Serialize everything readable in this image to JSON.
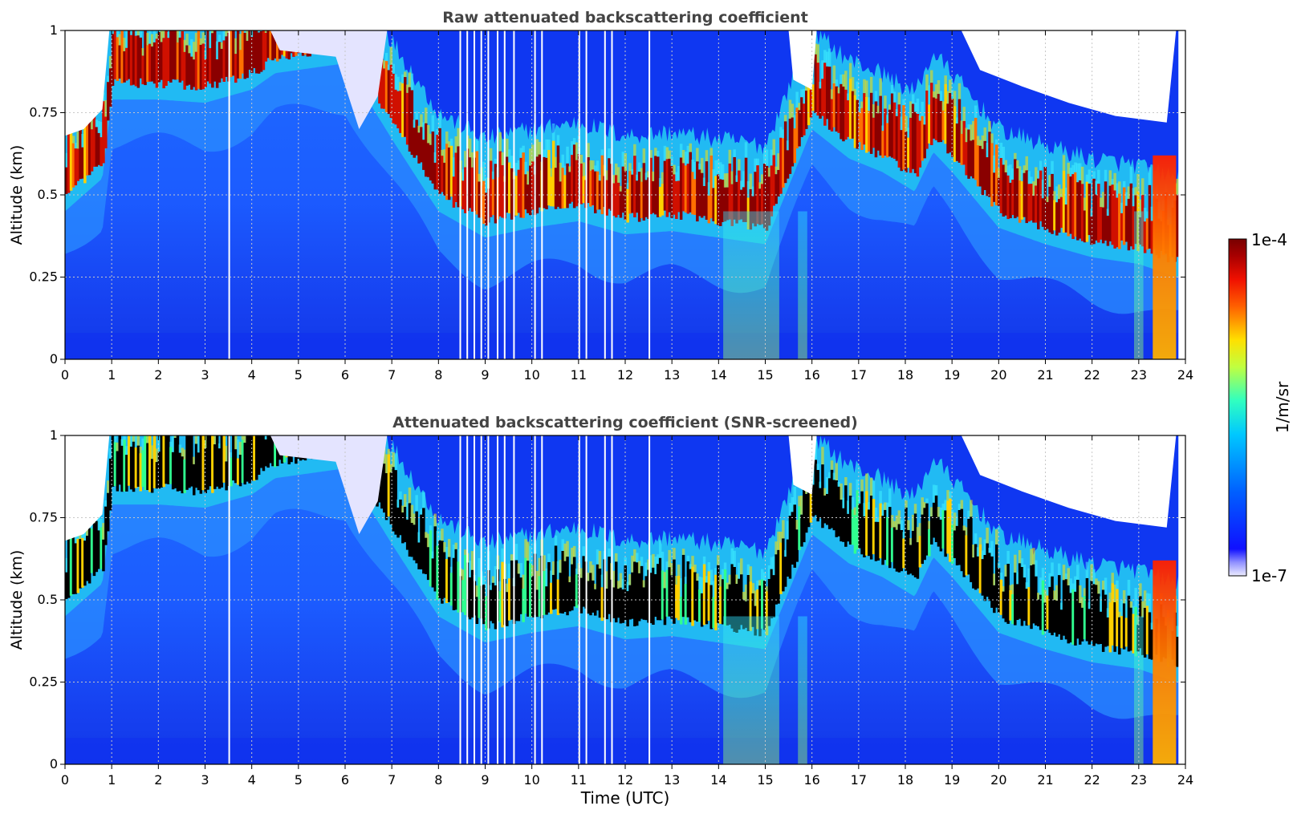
{
  "chart_data": [
    {
      "type": "heatmap",
      "title": "Raw attenuated backscattering coefficient",
      "xlabel": "",
      "ylabel": "Altitude (km)",
      "xlim": [
        0,
        24
      ],
      "ylim": [
        0,
        1
      ],
      "x_ticks": [
        "0",
        "1",
        "2",
        "3",
        "4",
        "5",
        "6",
        "7",
        "8",
        "9",
        "10",
        "11",
        "12",
        "13",
        "14",
        "15",
        "16",
        "17",
        "18",
        "19",
        "20",
        "21",
        "22",
        "23",
        "24"
      ],
      "y_ticks": [
        "0",
        "0.25",
        "0.5",
        "0.75",
        "1"
      ],
      "grid": true,
      "screened": false,
      "cloud_base_km": [
        {
          "t": 0.0,
          "z": 0.5
        },
        {
          "t": 0.8,
          "z": 0.6
        },
        {
          "t": 1.0,
          "z": 0.84
        },
        {
          "t": 2.0,
          "z": 0.84
        },
        {
          "t": 3.0,
          "z": 0.83
        },
        {
          "t": 4.0,
          "z": 0.87
        },
        {
          "t": 4.5,
          "z": 0.92
        },
        {
          "t": 6.0,
          "z": 0.95
        },
        {
          "t": 7.0,
          "z": 0.72
        },
        {
          "t": 8.0,
          "z": 0.5
        },
        {
          "t": 9.0,
          "z": 0.42
        },
        {
          "t": 10.0,
          "z": 0.45
        },
        {
          "t": 11.0,
          "z": 0.47
        },
        {
          "t": 12.0,
          "z": 0.43
        },
        {
          "t": 13.0,
          "z": 0.44
        },
        {
          "t": 14.0,
          "z": 0.42
        },
        {
          "t": 15.0,
          "z": 0.4
        },
        {
          "t": 16.0,
          "z": 0.75
        },
        {
          "t": 16.8,
          "z": 0.66
        },
        {
          "t": 17.5,
          "z": 0.62
        },
        {
          "t": 18.2,
          "z": 0.56
        },
        {
          "t": 18.6,
          "z": 0.68
        },
        {
          "t": 19.0,
          "z": 0.62
        },
        {
          "t": 20.0,
          "z": 0.45
        },
        {
          "t": 21.0,
          "z": 0.4
        },
        {
          "t": 22.0,
          "z": 0.36
        },
        {
          "t": 23.0,
          "z": 0.34
        },
        {
          "t": 23.8,
          "z": 0.3
        }
      ],
      "fog_intervals_h": [
        [
          14.1,
          15.3
        ],
        [
          15.7,
          15.9
        ],
        [
          22.9,
          23.1
        ],
        [
          23.3,
          23.8
        ]
      ],
      "missing_profiles_h": [
        3.5,
        8.45,
        8.6,
        8.75,
        8.9,
        9.05,
        9.25,
        9.4,
        9.6,
        10.05,
        10.2,
        11.0,
        11.15,
        11.55,
        11.7,
        12.5
      ]
    },
    {
      "type": "heatmap",
      "title": "Attenuated backscattering coefficient (SNR-screened)",
      "xlabel": "Time (UTC)",
      "ylabel": "Altitude (km)",
      "xlim": [
        0,
        24
      ],
      "ylim": [
        0,
        1
      ],
      "x_ticks": [
        "0",
        "1",
        "2",
        "3",
        "4",
        "5",
        "6",
        "7",
        "8",
        "9",
        "10",
        "11",
        "12",
        "13",
        "14",
        "15",
        "16",
        "17",
        "18",
        "19",
        "20",
        "21",
        "22",
        "23",
        "24"
      ],
      "y_ticks": [
        "0",
        "0.25",
        "0.5",
        "0.75",
        "1"
      ],
      "grid": true,
      "screened": true
    }
  ],
  "colorbar": {
    "label": "1/m/sr",
    "max_label": "1e-4",
    "min_label": "1e-7",
    "scale": "log",
    "colormap": [
      "#ececff",
      "#1010ff",
      "#0080ff",
      "#00d8ff",
      "#40ffb0",
      "#c0ff40",
      "#ffd000",
      "#ff6000",
      "#ff1000",
      "#a00000",
      "#780000"
    ]
  }
}
